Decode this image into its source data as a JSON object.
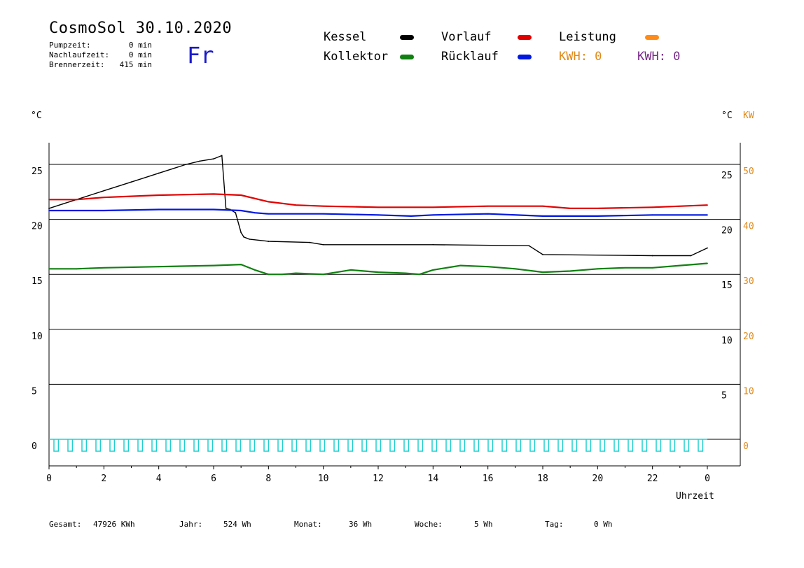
{
  "header": {
    "title": "CosmoSol 30.10.2020",
    "day": "Fr",
    "stats": [
      {
        "label": "Pumpzeit:",
        "value": "0 min"
      },
      {
        "label": "Nachlaufzeit:",
        "value": "0 min"
      },
      {
        "label": "Brennerzeit:",
        "value": "415 min"
      }
    ]
  },
  "legend": {
    "kessel": "Kessel",
    "vorlauf": "Vorlauf",
    "leistung": "Leistung",
    "kollektor": "Kollektor",
    "ruecklauf": "Rücklauf",
    "kwh_orange": "KWH: 0",
    "kwh_purple": "KWH: 0"
  },
  "units": {
    "left": "°C",
    "right_c": "°C",
    "right_kw": "KW",
    "x_label": "Uhrzeit"
  },
  "footer": [
    {
      "label": "Gesamt:",
      "value": "47926 KWh"
    },
    {
      "label": "Jahr:",
      "value": "524 Wh"
    },
    {
      "label": "Monat:",
      "value": "36 Wh"
    },
    {
      "label": "Woche:",
      "value": "5 Wh"
    },
    {
      "label": "Tag:",
      "value": "0 Wh"
    }
  ],
  "colors": {
    "kessel": "#000000",
    "vorlauf": "#e00000",
    "ruecklauf": "#0018e0",
    "kollektor": "#108010",
    "leistung": "#ff8c1a",
    "kw_axis": "#e08a1a",
    "kwh_purple": "#7a2a8a",
    "pump": "#20d0d0"
  },
  "chart_data": {
    "type": "line",
    "xlabel": "Uhrzeit",
    "ylabel": "°C",
    "xlim": [
      0,
      24
    ],
    "ylim_left": [
      -2.5,
      27
    ],
    "ylim_right_kw": [
      -5,
      54
    ],
    "x_ticks": [
      "0",
      "2",
      "4",
      "6",
      "8",
      "10",
      "12",
      "14",
      "16",
      "18",
      "20",
      "22",
      "0"
    ],
    "y_ticks_left": [
      "0",
      "5",
      "10",
      "15",
      "20",
      "25"
    ],
    "y_ticks_right_c": [
      "5",
      "10",
      "15",
      "20",
      "25"
    ],
    "y_ticks_right_kw": [
      "0",
      "10",
      "20",
      "30",
      "40",
      "50"
    ],
    "series": [
      {
        "name": "Kessel",
        "color": "#000000",
        "x": [
          0,
          0.5,
          1,
          2,
          3,
          4,
          5,
          5.5,
          6,
          6.3,
          6.45,
          6.6,
          6.8,
          7.0,
          7.1,
          7.3,
          8,
          9.5,
          10,
          14,
          17.5,
          18,
          22,
          23.4,
          24
        ],
        "y": [
          21.0,
          21.4,
          21.8,
          22.6,
          23.4,
          24.2,
          25.0,
          25.3,
          25.5,
          25.8,
          21.0,
          20.9,
          20.6,
          18.8,
          18.4,
          18.2,
          18.0,
          17.9,
          17.7,
          17.7,
          17.6,
          16.8,
          16.7,
          16.7,
          17.4
        ]
      },
      {
        "name": "Vorlauf",
        "color": "#e00000",
        "x": [
          0,
          1,
          2,
          4,
          6,
          7,
          8,
          9,
          10,
          12,
          14,
          16,
          18,
          19,
          20,
          22,
          24
        ],
        "y": [
          21.8,
          21.8,
          22.0,
          22.2,
          22.3,
          22.2,
          21.6,
          21.3,
          21.2,
          21.1,
          21.1,
          21.2,
          21.2,
          21.0,
          21.0,
          21.1,
          21.3
        ]
      },
      {
        "name": "Rücklauf",
        "color": "#0018e0",
        "x": [
          0,
          1,
          2,
          4,
          6,
          7,
          7.5,
          8,
          10,
          12,
          13.2,
          14,
          16,
          18,
          20,
          22,
          24
        ],
        "y": [
          20.8,
          20.8,
          20.8,
          20.9,
          20.9,
          20.8,
          20.6,
          20.5,
          20.5,
          20.4,
          20.3,
          20.4,
          20.5,
          20.3,
          20.3,
          20.4,
          20.4
        ]
      },
      {
        "name": "Kollektor",
        "color": "#108010",
        "x": [
          0,
          1,
          2,
          4,
          6,
          7,
          7.5,
          8,
          8.5,
          9,
          10,
          11,
          12,
          13,
          13.5,
          14,
          15,
          16,
          17,
          18,
          19,
          20,
          21,
          22,
          23,
          24
        ],
        "y": [
          15.5,
          15.5,
          15.6,
          15.7,
          15.8,
          15.9,
          15.4,
          15.0,
          15.0,
          15.1,
          15.0,
          15.4,
          15.2,
          15.1,
          15.0,
          15.4,
          15.8,
          15.7,
          15.5,
          15.2,
          15.3,
          15.5,
          15.6,
          15.6,
          15.8,
          16.0
        ]
      }
    ],
    "pump_pulses_count": 47,
    "pump_baseline": 0
  }
}
